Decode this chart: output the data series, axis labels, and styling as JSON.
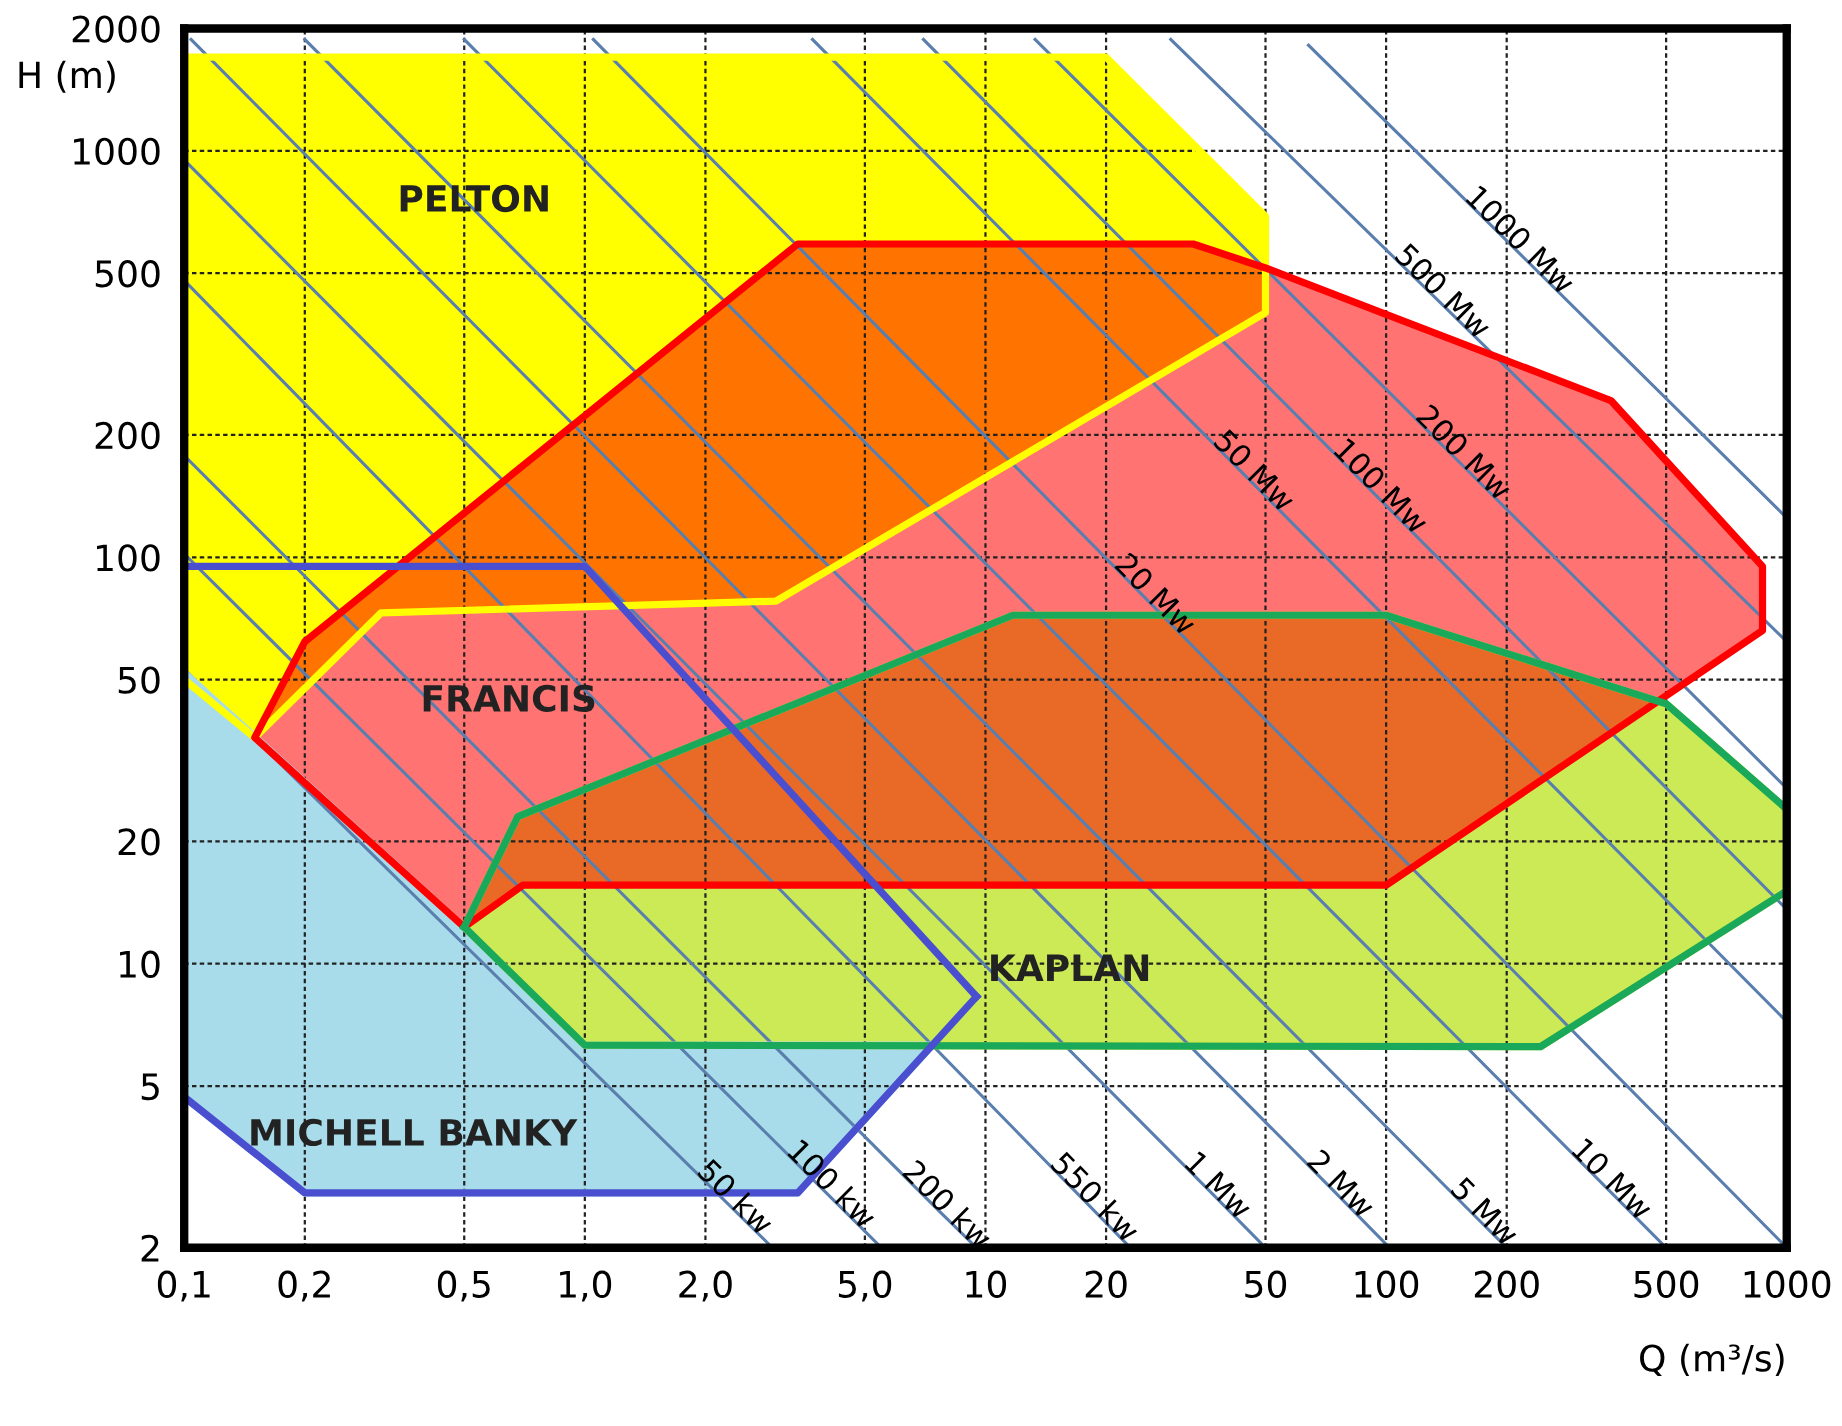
{
  "chart_data": {
    "type": "line",
    "xlabel": "Q (m³/s)",
    "ylabel": "H (m)",
    "log": "xy",
    "grid": true,
    "legend": false,
    "marker": "none",
    "xlim": [
      0.1,
      1000
    ],
    "ylim": [
      2,
      2000
    ],
    "xticks": [
      {
        "value": 0.1,
        "label": "0,1"
      },
      {
        "value": 0.2,
        "label": "0,2"
      },
      {
        "value": 0.5,
        "label": "0,5"
      },
      {
        "value": 1,
        "label": "1,0"
      },
      {
        "value": 2,
        "label": "2,0"
      },
      {
        "value": 5,
        "label": "5,0"
      },
      10,
      20,
      50,
      100,
      200,
      500,
      1000
    ],
    "yticks": [
      2,
      5,
      10,
      20,
      50,
      100,
      200,
      500,
      1000,
      2000
    ],
    "series": [
      {
        "type": "area",
        "color": "#a8dcea",
        "x": [
          0.1,
          0.5,
          1.0,
          7.36,
          3.4,
          0.2,
          0.1
        ],
        "values": [
          52,
          12.3,
          6.3,
          6.3,
          2.73,
          2.73,
          4.7
        ]
      },
      {
        "type": "area",
        "color": "#ffff00",
        "x": [
          0.1,
          20,
          50,
          50,
          3.0,
          0.31,
          0.15,
          0.1
        ],
        "values": [
          1700,
          1700,
          690,
          400,
          78,
          73,
          36,
          50
        ]
      },
      {
        "type": "area",
        "color": "#bfe52a",
        "x": [
          0.5,
          0.68,
          11.7,
          100,
          500,
          1000,
          1000,
          243,
          1.0
        ],
        "values": [
          12.3,
          23,
          72,
          72,
          43.6,
          24,
          15.1,
          6.25,
          6.3
        ]
      },
      {
        "type": "area",
        "color": "#ff0000",
        "x": [
          0.15,
          0.2,
          3.4,
          33,
          50,
          100,
          364,
          870,
          870,
          100,
          0.7,
          0.5
        ],
        "values": [
          36,
          62,
          590,
          590,
          515,
          396,
          243,
          95,
          66,
          15.6,
          15.6,
          12.3
        ]
      },
      {
        "color": "#5a7fae",
        "name": "50 kw",
        "x": [
          0.1,
          2.28,
          2.94
        ],
        "values": [
          53,
          2.56,
          2
        ]
      },
      {
        "color": "#5a7fae",
        "name": "100 kw",
        "x": [
          0.1,
          3.96,
          5.5
        ],
        "values": [
          102,
          2.76,
          2
        ]
      },
      {
        "color": "#5a7fae",
        "name": "200 kw",
        "x": [
          0.1,
          7.7,
          9.5
        ],
        "values": [
          178,
          2.45,
          2
        ]
      },
      {
        "color": "#5a7fae",
        "name": "550 kw",
        "x": [
          0.1,
          18,
          23
        ],
        "values": [
          480,
          2.56,
          2
        ]
      },
      {
        "color": "#5a7fae",
        "name": "1 Mw",
        "x": [
          0.1,
          36.5,
          50
        ],
        "values": [
          950,
          2.74,
          2
        ]
      },
      {
        "color": "#5a7fae",
        "name": "2 Mw",
        "x": [
          0.104,
          74,
          102
        ],
        "values": [
          1880,
          2.76,
          2
        ]
      },
      {
        "color": "#5a7fae",
        "name": "5 Mw",
        "x": [
          0.2,
          169,
          200
        ],
        "values": [
          1880,
          2.36,
          2
        ]
      },
      {
        "color": "#5a7fae",
        "name": "10 Mw",
        "x": [
          0.5,
          351,
          500
        ],
        "values": [
          1880,
          2.84,
          2
        ]
      },
      {
        "color": "#5a7fae",
        "name": "20 Mw",
        "x": [
          1.05,
          25.5,
          1000
        ],
        "values": [
          1880,
          78,
          2
        ]
      },
      {
        "color": "#5a7fae",
        "name": "50 Mw",
        "x": [
          3.7,
          45,
          1000
        ],
        "values": [
          1880,
          157,
          7.2
        ]
      },
      {
        "color": "#5a7fae",
        "name": "100 Mw",
        "x": [
          7,
          93,
          1000
        ],
        "values": [
          1880,
          144,
          13.6
        ]
      },
      {
        "color": "#5a7fae",
        "name": "200 Mw",
        "x": [
          13.3,
          150,
          1000
        ],
        "values": [
          1880,
          174,
          27
        ]
      },
      {
        "color": "#5a7fae",
        "name": "500 Mw",
        "x": [
          29,
          133,
          1000
        ],
        "values": [
          1880,
          434,
          62
        ]
      },
      {
        "color": "#5a7fae",
        "name": "1000 Mw",
        "x": [
          64,
          207,
          1000
        ],
        "values": [
          1820,
          581,
          125
        ]
      },
      {
        "color": "#1aa85a",
        "x": [
          0.5,
          0.68,
          11.7,
          100,
          500,
          1000,
          1000
        ],
        "values": [
          12.3,
          23,
          72,
          72,
          43.6,
          24,
          15.1
        ]
      },
      {
        "color": "#1aa85a",
        "x": [
          0.5,
          1.0,
          243,
          1000
        ],
        "values": [
          12.3,
          6.3,
          6.25,
          15.1
        ]
      },
      {
        "color": "#4a4fd0",
        "x": [
          0.1,
          1.0,
          9.5
        ],
        "values": [
          95,
          95,
          8.3
        ]
      },
      {
        "color": "#4a4fd0",
        "x": [
          0.1,
          0.1,
          0.2,
          3.4,
          9.5
        ],
        "values": [
          95,
          4.7,
          2.73,
          2.73,
          8.3
        ]
      }
    ],
    "annotations": [
      "PELTON",
      "FRANCIS",
      "KAPLAN",
      "MICHELL BANKY"
    ]
  }
}
